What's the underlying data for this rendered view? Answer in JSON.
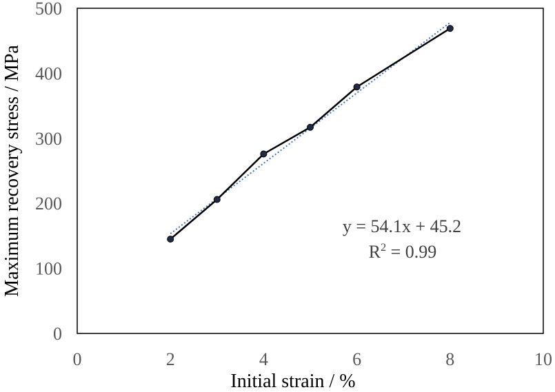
{
  "chart_data": {
    "type": "line",
    "title": "",
    "xlabel": "Initial strain / %",
    "ylabel": "Maximum recovery stress / MPa",
    "xlim": [
      0,
      10
    ],
    "ylim": [
      0,
      500
    ],
    "xticks": [
      "0",
      "2",
      "4",
      "6",
      "8",
      "10"
    ],
    "yticks": [
      "0",
      "100",
      "200",
      "300",
      "400",
      "500"
    ],
    "grid": false,
    "series": [
      {
        "x": [
          2,
          3,
          4,
          5,
          6,
          8
        ],
        "y": [
          145,
          206,
          276,
          317,
          379,
          469
        ],
        "color": "#000000",
        "marker": "circle"
      }
    ],
    "trendline": {
      "slope": 54.1,
      "intercept": 45.2,
      "x_range": [
        2,
        8
      ],
      "color": "#4472C4",
      "style": "dotted"
    },
    "annotations": {
      "equation": "y = 54.1x + 45.2",
      "r2_label": "R",
      "r2_sup": "2",
      "r2_value": " = 0.99"
    }
  }
}
